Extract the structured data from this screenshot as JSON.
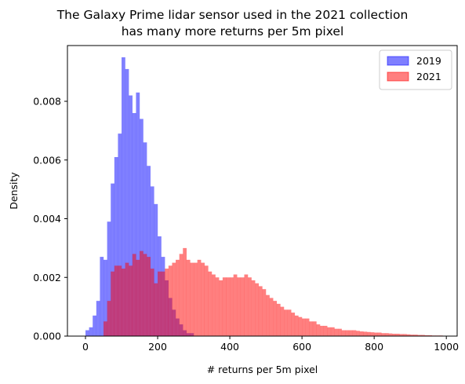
{
  "chart_data": {
    "type": "bar",
    "histogram": true,
    "title_lines": [
      "The Galaxy Prime lidar sensor used in the 2021 collection",
      "has many more returns per 5m pixel"
    ],
    "xlabel": "# returns per 5m pixel",
    "ylabel": "Density",
    "xlim": [
      -50,
      1030
    ],
    "ylim": [
      0,
      0.0099
    ],
    "xticks": [
      0,
      200,
      400,
      600,
      800,
      1000
    ],
    "yticks": [
      0.0,
      0.002,
      0.004,
      0.006,
      0.008
    ],
    "ytick_labels": [
      "0.000",
      "0.002",
      "0.004",
      "0.006",
      "0.008"
    ],
    "grid": false,
    "legend_position": "top-right",
    "series": [
      {
        "name": "2019",
        "color": "#0000ff",
        "alpha": 0.5,
        "bin_start": 0,
        "bin_width": 10,
        "values": [
          0.0002,
          0.0003,
          0.0007,
          0.0012,
          0.0027,
          0.0026,
          0.0039,
          0.0052,
          0.0061,
          0.0069,
          0.0095,
          0.0091,
          0.0082,
          0.0076,
          0.0083,
          0.0074,
          0.0066,
          0.0058,
          0.0051,
          0.0045,
          0.0034,
          0.0027,
          0.0019,
          0.0013,
          0.0009,
          0.0006,
          0.0004,
          0.0002,
          0.0001,
          0.0001
        ]
      },
      {
        "name": "2021",
        "color": "#ff0000",
        "alpha": 0.5,
        "bin_start": 50,
        "bin_width": 10,
        "values": [
          0.0005,
          0.0012,
          0.0022,
          0.0024,
          0.0024,
          0.0023,
          0.0025,
          0.0024,
          0.0028,
          0.0026,
          0.0029,
          0.0028,
          0.0027,
          0.0023,
          0.0018,
          0.0022,
          0.0022,
          0.0023,
          0.0024,
          0.0025,
          0.0026,
          0.0028,
          0.003,
          0.0026,
          0.0025,
          0.0025,
          0.0026,
          0.0025,
          0.0024,
          0.0022,
          0.0021,
          0.002,
          0.0019,
          0.002,
          0.002,
          0.002,
          0.0021,
          0.002,
          0.002,
          0.0021,
          0.002,
          0.0019,
          0.0018,
          0.0017,
          0.0016,
          0.0014,
          0.0013,
          0.0012,
          0.0011,
          0.001,
          0.0009,
          0.0009,
          0.0008,
          0.0007,
          0.00065,
          0.0006,
          0.0006,
          0.0005,
          0.0005,
          0.0004,
          0.00035,
          0.00035,
          0.0003,
          0.0003,
          0.00025,
          0.00025,
          0.0002,
          0.0002,
          0.0002,
          0.0002,
          0.00018,
          0.00016,
          0.00015,
          0.00014,
          0.00013,
          0.00012,
          0.00012,
          0.0001,
          0.0001,
          9e-05,
          8e-05,
          8e-05,
          7e-05,
          7e-05,
          6e-05,
          5e-05,
          5e-05,
          4e-05,
          4e-05,
          3e-05,
          3e-05,
          2e-05,
          2e-05,
          2e-05
        ]
      }
    ]
  }
}
